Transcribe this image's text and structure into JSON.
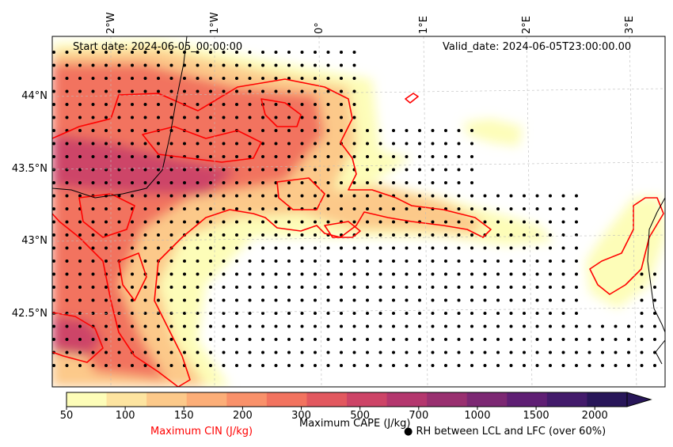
{
  "chart_data": {
    "type": "heatmap",
    "start_date_label": "Start date: 2024-06-05_00:00:00",
    "valid_date_label": "Valid_date: 2024-06-05T23:00:00.00",
    "lon_ticks": [
      "2°W",
      "1°W",
      "0°",
      "1°E",
      "2°E",
      "3°E"
    ],
    "lat_ticks": [
      "44°N",
      "43.5°N",
      "43°N",
      "42.5°N"
    ],
    "colorbar": {
      "label": "Maximum CAPE (J/kg)",
      "levels": [
        50,
        100,
        150,
        200,
        300,
        500,
        700,
        1000,
        1500,
        2000
      ],
      "tick_labels": [
        "50",
        "100",
        "150",
        "200",
        "300",
        "500",
        "700",
        "1000",
        "1500",
        "2000"
      ],
      "colors": [
        "#fdfdb8",
        "#fde4a0",
        "#fcc98a",
        "#fcae78",
        "#f9916a",
        "#f2735f",
        "#e2585f",
        "#cd4467",
        "#b4376e",
        "#993070",
        "#7c2873",
        "#5f1f74",
        "#431b6b",
        "#281659"
      ]
    },
    "cin_label": "Maximum CIN (J/kg)",
    "dots_label": "● RH between LCL and LFC (over 60%)",
    "colors": {
      "cin": "#ff0000",
      "coast": "#000000"
    }
  }
}
